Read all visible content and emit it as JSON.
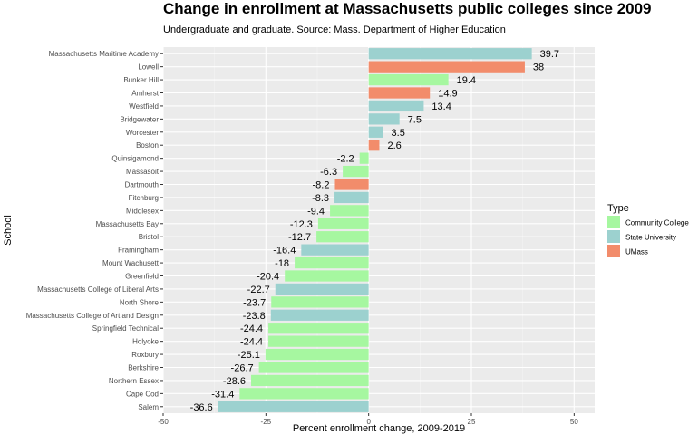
{
  "chart_data": {
    "type": "bar",
    "orientation": "horizontal",
    "title": "Change in enrollment at Massachusetts public colleges since 2009",
    "subtitle": "Undergraduate and graduate. Source: Mass. Department of Higher Education",
    "xlabel": "Percent enrollment change, 2009-2019",
    "ylabel": "School",
    "xlim": [
      -50,
      55
    ],
    "x_ticks": [
      -50,
      -25,
      0,
      25,
      50
    ],
    "grid": true,
    "legend": {
      "title": "Type",
      "position": "right",
      "entries": [
        {
          "name": "Community College",
          "color": "#a6f7a0"
        },
        {
          "name": "State University",
          "color": "#9cd1cf"
        },
        {
          "name": "UMass",
          "color": "#f28c6b"
        }
      ]
    },
    "bars": [
      {
        "school": "Massachusetts Maritime Academy",
        "value": 39.7,
        "type": "State University"
      },
      {
        "school": "Lowell",
        "value": 38,
        "type": "UMass"
      },
      {
        "school": "Bunker Hill",
        "value": 19.4,
        "type": "Community College"
      },
      {
        "school": "Amherst",
        "value": 14.9,
        "type": "UMass"
      },
      {
        "school": "Westfield",
        "value": 13.4,
        "type": "State University"
      },
      {
        "school": "Bridgewater",
        "value": 7.5,
        "type": "State University"
      },
      {
        "school": "Worcester",
        "value": 3.5,
        "type": "State University"
      },
      {
        "school": "Boston",
        "value": 2.6,
        "type": "UMass"
      },
      {
        "school": "Quinsigamond",
        "value": -2.2,
        "type": "Community College"
      },
      {
        "school": "Massasoit",
        "value": -6.3,
        "type": "Community College"
      },
      {
        "school": "Dartmouth",
        "value": -8.2,
        "type": "UMass"
      },
      {
        "school": "Fitchburg",
        "value": -8.3,
        "type": "State University"
      },
      {
        "school": "Middlesex",
        "value": -9.4,
        "type": "Community College"
      },
      {
        "school": "Massachusetts Bay",
        "value": -12.3,
        "type": "Community College"
      },
      {
        "school": "Bristol",
        "value": -12.7,
        "type": "Community College"
      },
      {
        "school": "Framingham",
        "value": -16.4,
        "type": "State University"
      },
      {
        "school": "Mount Wachusett",
        "value": -18,
        "type": "Community College"
      },
      {
        "school": "Greenfield",
        "value": -20.4,
        "type": "Community College"
      },
      {
        "school": "Massachusetts College of Liberal Arts",
        "value": -22.7,
        "type": "State University"
      },
      {
        "school": "North Shore",
        "value": -23.7,
        "type": "Community College"
      },
      {
        "school": "Massachusetts College of Art and Design",
        "value": -23.8,
        "type": "State University"
      },
      {
        "school": "Springfield Technical",
        "value": -24.4,
        "type": "Community College"
      },
      {
        "school": "Holyoke",
        "value": -24.4,
        "type": "Community College"
      },
      {
        "school": "Roxbury",
        "value": -25.1,
        "type": "Community College"
      },
      {
        "school": "Berkshire",
        "value": -26.7,
        "type": "Community College"
      },
      {
        "school": "Northern Essex",
        "value": -28.6,
        "type": "Community College"
      },
      {
        "school": "Cape Cod",
        "value": -31.4,
        "type": "Community College"
      },
      {
        "school": "Salem",
        "value": -36.6,
        "type": "State University"
      }
    ]
  }
}
